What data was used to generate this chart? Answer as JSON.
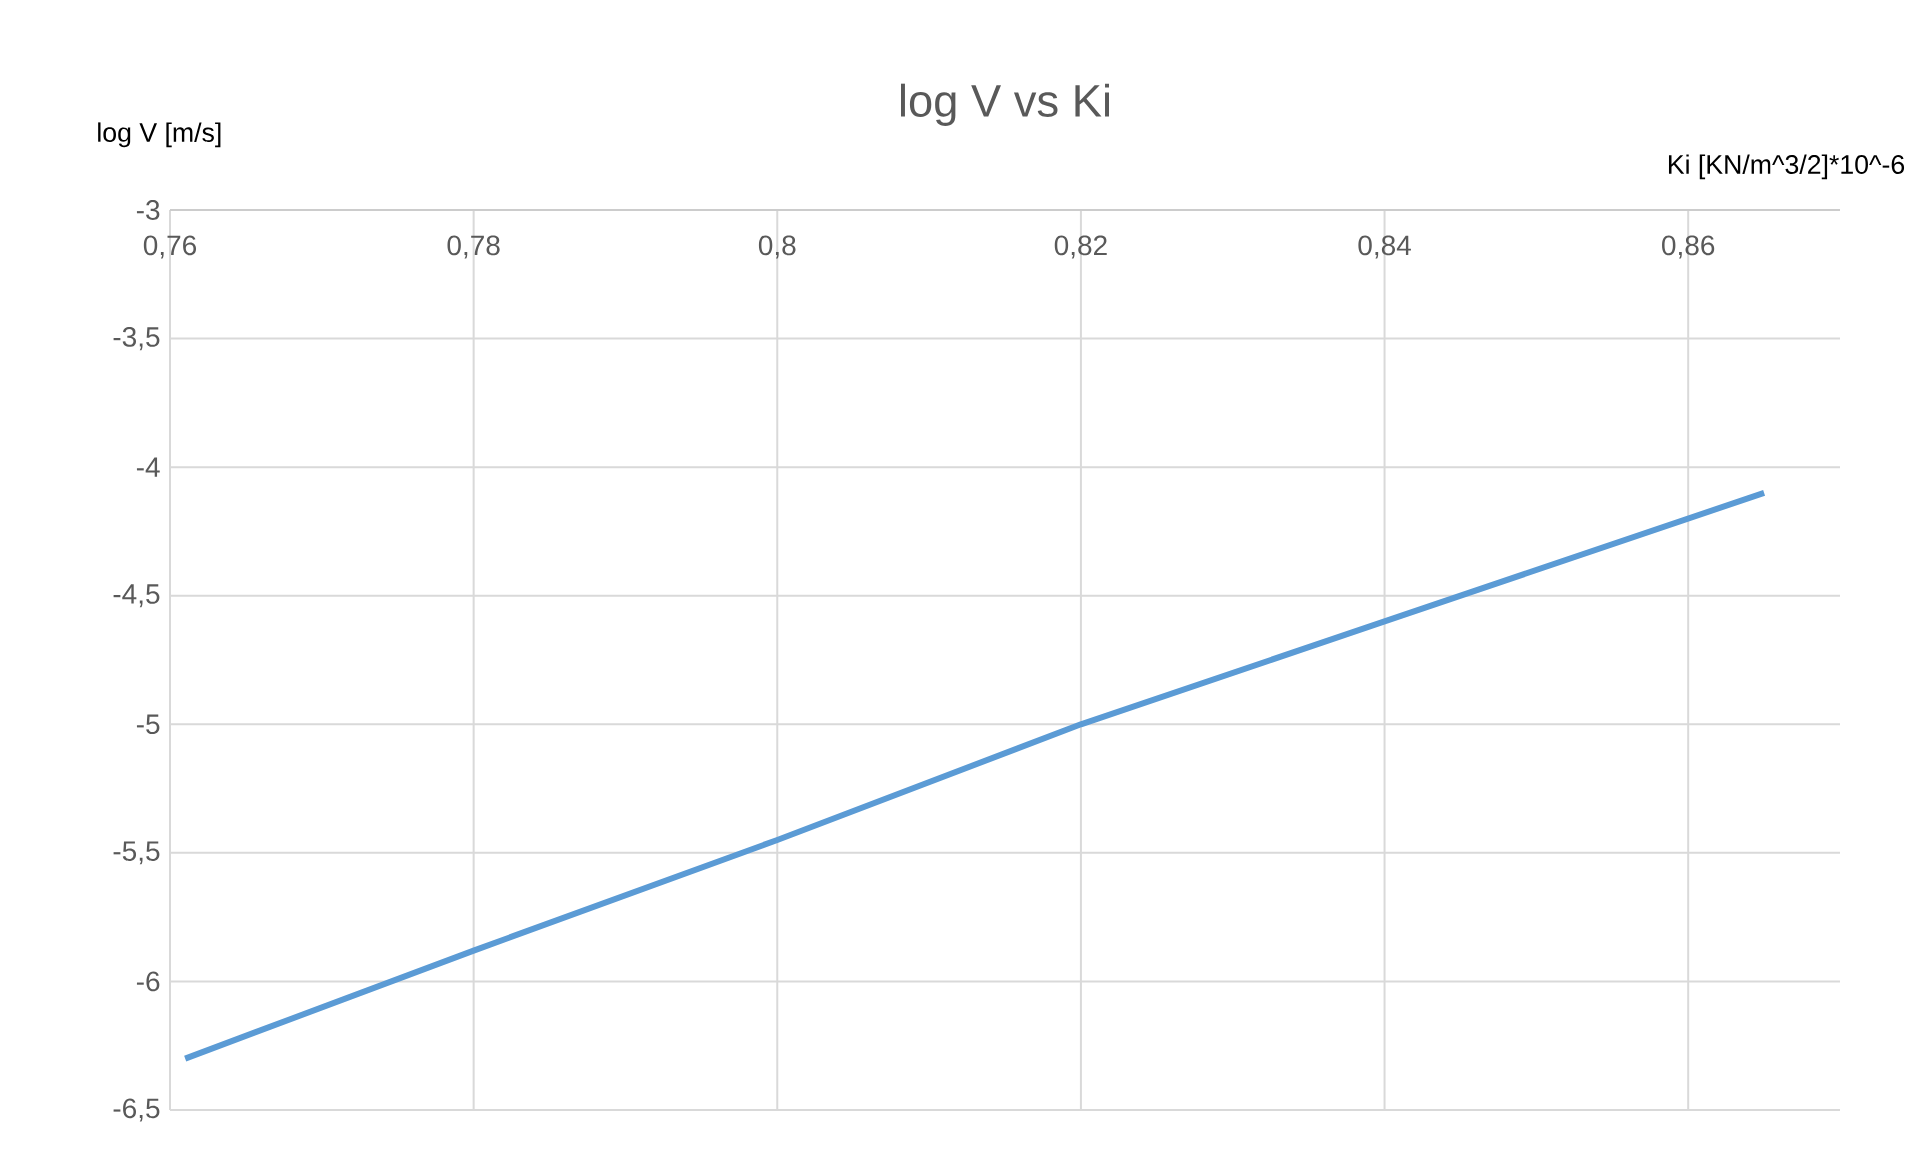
{
  "chart_data": {
    "type": "line",
    "title": "log V vs Ki",
    "xlabel": "Ki [KN/m^3/2]*10^-6",
    "ylabel": "log V [m/s]",
    "x": [
      0.761,
      0.78,
      0.8,
      0.82,
      0.84,
      0.865
    ],
    "series": [
      {
        "color": "#5b9bd5",
        "values": [
          -6.3,
          -5.88,
          -5.45,
          -5.0,
          -4.6,
          -4.1
        ]
      }
    ],
    "xlim": [
      0.76,
      0.87
    ],
    "ylim": [
      -6.5,
      -3
    ],
    "xticks": [
      {
        "value": 0.76,
        "label": "0,76"
      },
      {
        "value": 0.78,
        "label": "0,78"
      },
      {
        "value": 0.8,
        "label": "0,8"
      },
      {
        "value": 0.82,
        "label": "0,82"
      },
      {
        "value": 0.84,
        "label": "0,84"
      },
      {
        "value": 0.86,
        "label": "0,86"
      }
    ],
    "yticks": [
      {
        "value": -3,
        "label": "-3"
      },
      {
        "value": -3.5,
        "label": "-3,5"
      },
      {
        "value": -4,
        "label": "-4"
      },
      {
        "value": -4.5,
        "label": "-4,5"
      },
      {
        "value": -5,
        "label": "-5"
      },
      {
        "value": -5.5,
        "label": "-5,5"
      },
      {
        "value": -6,
        "label": "-6"
      },
      {
        "value": -6.5,
        "label": "-6,5"
      }
    ],
    "grid": true,
    "legend": false,
    "marker": "none",
    "line_style": "solid"
  }
}
